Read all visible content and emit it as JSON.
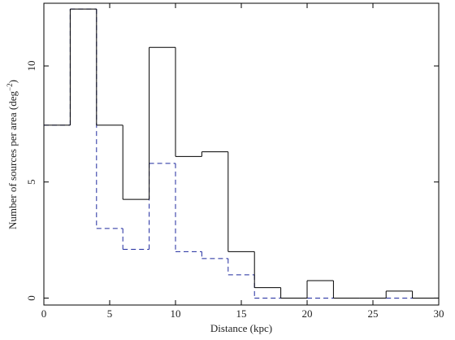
{
  "chart_data": {
    "type": "step",
    "xlabel": "Distance (kpc)",
    "ylabel": "Number of sources per area (deg",
    "ylabel_exponent": "−2",
    "ylabel_close": ")",
    "xlim": [
      0,
      30
    ],
    "ylim": [
      -0.3,
      12.7
    ],
    "x_ticks": [
      0,
      5,
      10,
      15,
      20,
      25,
      30
    ],
    "y_ticks": [
      0,
      5,
      10
    ],
    "x_tick_labels": [
      "0",
      "5",
      "10",
      "15",
      "20",
      "25",
      "30"
    ],
    "y_tick_labels": [
      "0",
      "5",
      "10"
    ],
    "bin_edges": [
      0,
      2,
      4,
      6,
      8,
      10,
      12,
      14,
      16,
      18,
      20,
      22,
      24,
      26,
      28,
      30
    ],
    "series": [
      {
        "style": "solid",
        "color": "#000000",
        "values": [
          7.45,
          12.45,
          7.45,
          4.25,
          10.8,
          6.1,
          6.3,
          2.0,
          0.45,
          0.0,
          0.75,
          0.0,
          0.0,
          0.3,
          0.0
        ]
      },
      {
        "style": "dashed",
        "color": "#1f2a9e",
        "values": [
          7.45,
          12.45,
          3.0,
          2.1,
          5.8,
          2.0,
          1.7,
          1.0,
          0.0,
          0.0,
          0.0,
          0.0,
          0.0,
          0.0,
          0.0
        ]
      }
    ],
    "grid": false,
    "legend": "none"
  }
}
